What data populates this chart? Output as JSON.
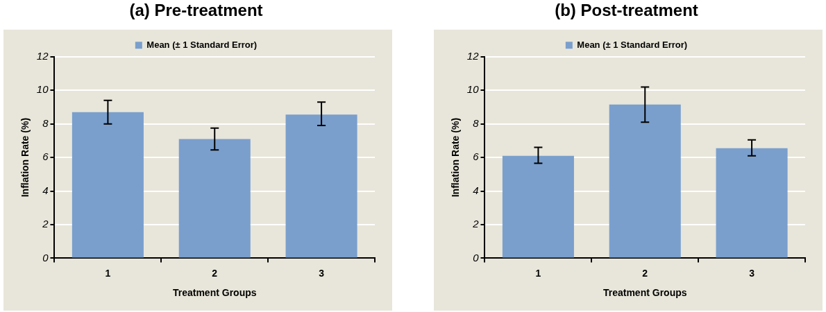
{
  "chart_data": [
    {
      "type": "bar",
      "title": "(a) Pre-treatment",
      "xlabel": "Treatment Groups",
      "ylabel": "Inflation Rate (%)",
      "categories": [
        "1",
        "2",
        "3"
      ],
      "series": [
        {
          "name": "Mean (± 1 Standard Error)",
          "color": "#7a9fcd",
          "values": [
            8.7,
            7.1,
            8.55
          ],
          "errors": [
            [
              8.0,
              9.4
            ],
            [
              6.45,
              7.75
            ],
            [
              7.9,
              9.3
            ]
          ]
        }
      ],
      "ylim": [
        0,
        12
      ],
      "yticks": [
        0,
        2,
        4,
        6,
        8,
        10,
        12
      ],
      "grid": "y",
      "legend": "top"
    },
    {
      "type": "bar",
      "title": "(b) Post-treatment",
      "xlabel": "Treatment Groups",
      "ylabel": "Inflation Rate (%)",
      "categories": [
        "1",
        "2",
        "3"
      ],
      "series": [
        {
          "name": "Mean (± 1 Standard Error)",
          "color": "#7a9fcd",
          "values": [
            6.1,
            9.15,
            6.55
          ],
          "errors": [
            [
              5.65,
              6.6
            ],
            [
              8.1,
              10.2
            ],
            [
              6.1,
              7.05
            ]
          ]
        }
      ],
      "ylim": [
        0,
        12
      ],
      "yticks": [
        0,
        2,
        4,
        6,
        8,
        10,
        12
      ],
      "grid": "y",
      "legend": "top"
    }
  ]
}
